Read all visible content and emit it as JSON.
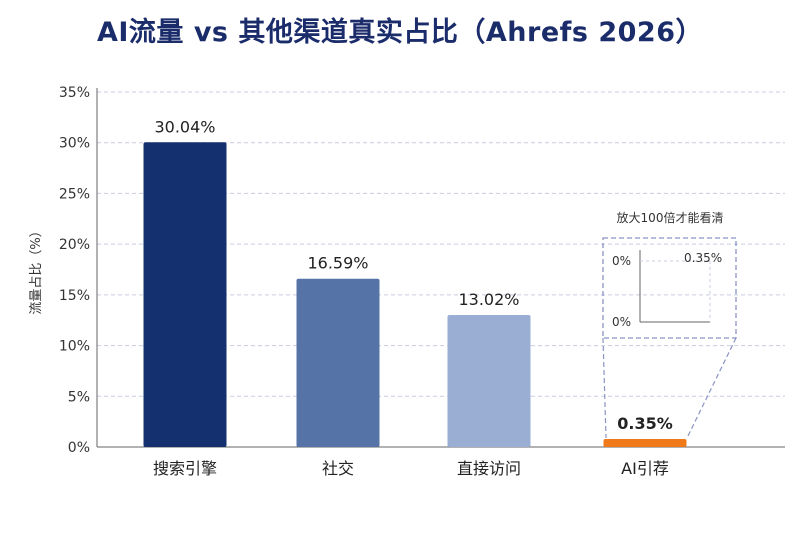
{
  "chart_data": {
    "type": "bar",
    "title": "AI流量 vs 其他渠道真实占比（Ahrefs 2026）",
    "ylabel": "流量占比（%）",
    "xlabel": "",
    "ylim": [
      0,
      35
    ],
    "yticks": [
      "0%",
      "5%",
      "10%",
      "15%",
      "20%",
      "25%",
      "30%",
      "35%"
    ],
    "grid": true,
    "categories": [
      "搜索引擎",
      "社交",
      "直接访问",
      "AI引荐"
    ],
    "values": [
      30.04,
      16.59,
      13.02,
      0.35
    ],
    "value_labels": [
      "30.04%",
      "16.59%",
      "13.02%",
      "0.35%"
    ],
    "colors": [
      "#15306e",
      "#5673a8",
      "#9aaed3",
      "#f07a1a"
    ],
    "highlight_label_color": "#e8691a",
    "inset": {
      "note": "放大100倍才能看清",
      "tick_labels": [
        "0%",
        "0%"
      ],
      "value_label": "0.35%"
    }
  }
}
